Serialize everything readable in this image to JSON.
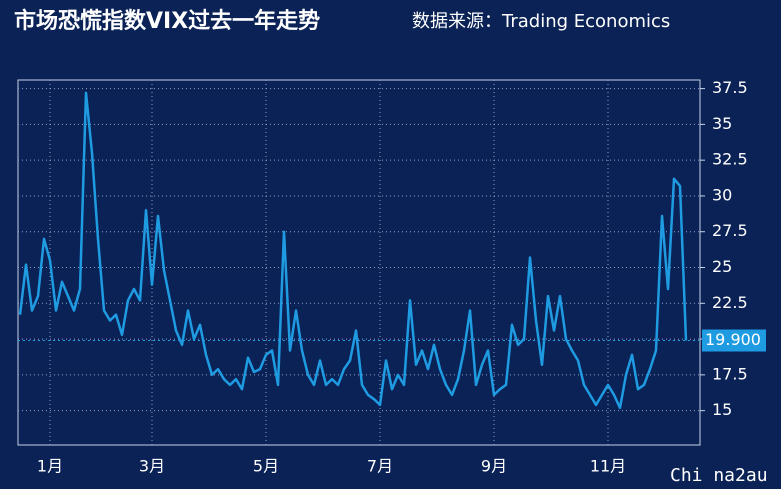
{
  "chart_data": {
    "type": "line",
    "title": "市场恐慌指数VIX过去一年走势",
    "subtitle": "数据来源：Trading Economics",
    "watermark": "Chi na2au",
    "categories": [
      null,
      null,
      null,
      null,
      null,
      "1月",
      null,
      null,
      null,
      null,
      null,
      null,
      null,
      null,
      null,
      null,
      null,
      null,
      null,
      null,
      null,
      null,
      "3月",
      null,
      null,
      null,
      null,
      null,
      null,
      null,
      null,
      null,
      null,
      null,
      null,
      null,
      null,
      null,
      null,
      null,
      null,
      "5月",
      null,
      null,
      null,
      null,
      null,
      null,
      null,
      null,
      null,
      null,
      null,
      null,
      null,
      null,
      null,
      null,
      null,
      null,
      "7月",
      null,
      null,
      null,
      null,
      null,
      null,
      null,
      null,
      null,
      null,
      null,
      null,
      null,
      null,
      null,
      null,
      null,
      null,
      "9月",
      null,
      null,
      null,
      null,
      null,
      null,
      null,
      null,
      null,
      null,
      null,
      null,
      null,
      null,
      null,
      null,
      null,
      null,
      "11月",
      null,
      null,
      null,
      null,
      null,
      null,
      null,
      null,
      null,
      null,
      null,
      null,
      null
    ],
    "series": [
      {
        "name": "VIX",
        "color": "#1f9be2",
        "values": [
          21.7,
          25.2,
          22,
          23,
          27,
          25.5,
          22,
          24,
          23,
          22,
          23.5,
          37.2,
          33,
          27,
          22,
          21.3,
          21.7,
          20.3,
          22.7,
          23.5,
          22.7,
          29,
          23.8,
          28.6,
          24.8,
          22.7,
          20.6,
          19.6,
          22,
          20,
          21,
          18.9,
          17.5,
          17.9,
          17.2,
          16.8,
          17.2,
          16.5,
          18.7,
          17.7,
          17.9,
          18.9,
          19.2,
          16.8,
          27.5,
          19.2,
          22,
          19.2,
          17.5,
          16.8,
          18.5,
          16.8,
          17.2,
          16.8,
          17.9,
          18.5,
          20.6,
          16.8,
          16.1,
          15.8,
          15.4,
          18.5,
          16.5,
          17.5,
          16.8,
          22.7,
          18.2,
          19.2,
          17.9,
          19.6,
          17.9,
          16.8,
          16.1,
          17.2,
          19.2,
          22,
          16.8,
          18.2,
          19.2,
          16.1,
          16.5,
          16.8,
          21,
          19.6,
          20,
          25.7,
          21.3,
          18.2,
          23,
          20.6,
          23,
          20,
          19.2,
          18.5,
          16.8,
          16.1,
          15.4,
          16.1,
          16.8,
          16.1,
          15.2,
          17.5,
          18.9,
          16.5,
          16.8,
          17.9,
          19.2,
          28.6,
          23.5,
          31.2,
          30.7,
          19.9
        ]
      }
    ],
    "last_label": {
      "value": 19.9,
      "label": "19.900"
    },
    "ylim": [
      12.6,
      38.1
    ],
    "yticks": [
      15,
      17.5,
      20,
      22.5,
      25,
      27.5,
      30,
      32.5,
      35,
      37.5
    ],
    "grid": true
  }
}
